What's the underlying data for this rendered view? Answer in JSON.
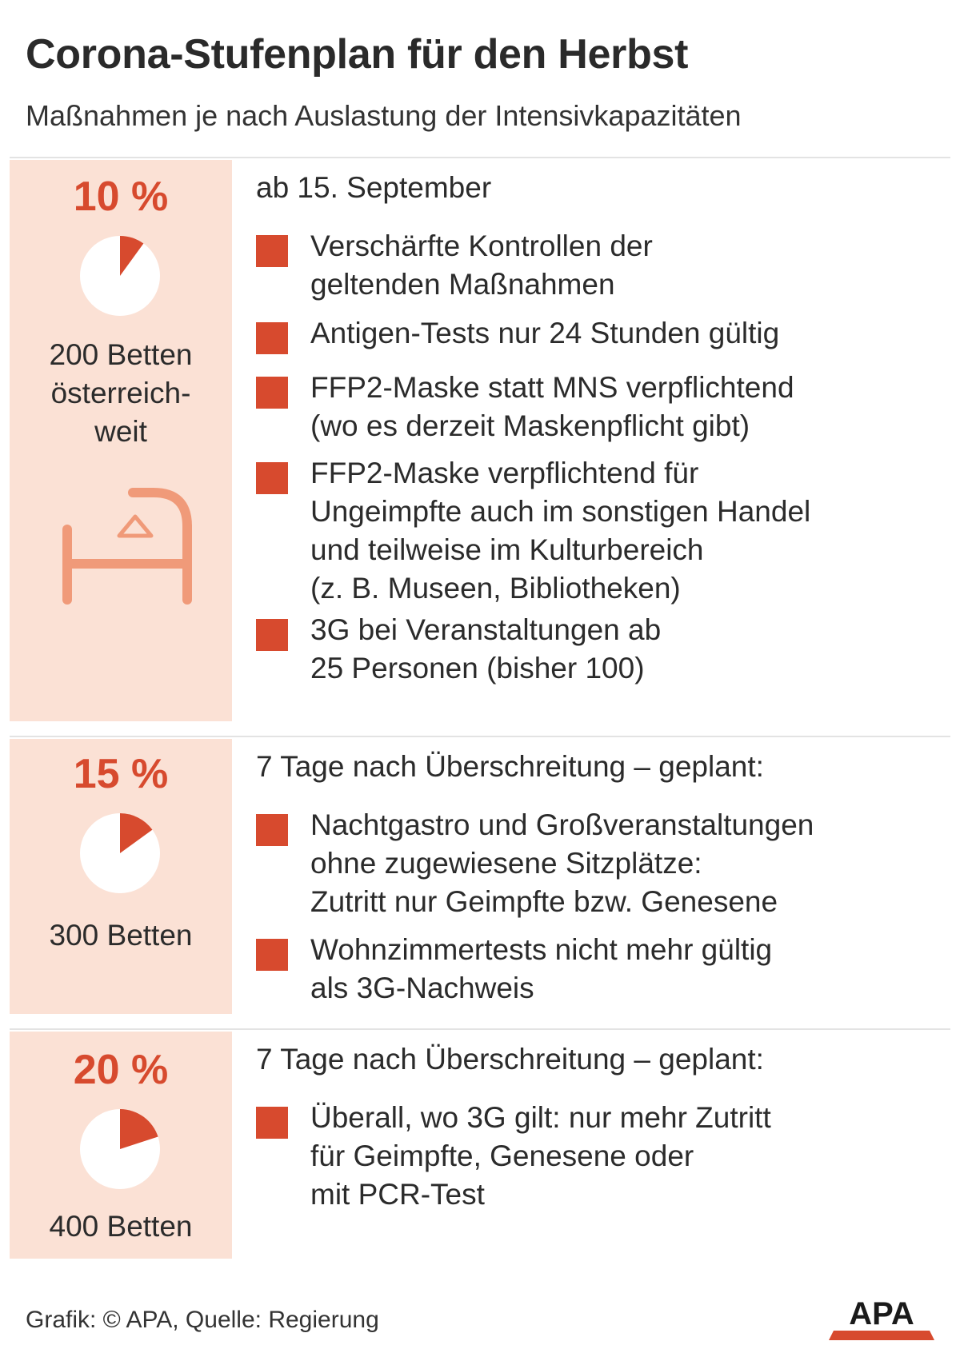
{
  "title": "Corona-Stufenplan für den Herbst",
  "subtitle": "Maßnahmen je nach Auslastung der Intensivkapazitäten",
  "colors": {
    "accent": "#d74a2e",
    "panel": "#fbe1d5",
    "text": "#2b2b2b"
  },
  "stages": [
    {
      "percent_label": "10 %",
      "share": 0.1,
      "beds_lines": [
        "200 Betten",
        "österreich-",
        "weit"
      ],
      "icon": "hospital-bed-icon",
      "heading": "ab 15. September",
      "items": [
        [
          "Verschärfte Kontrollen der",
          "geltenden Maßnahmen"
        ],
        [
          "Antigen-Tests nur 24 Stunden gültig"
        ],
        [
          "FFP2-Maske statt MNS verpflichtend",
          "(wo es derzeit Maskenpflicht gibt)"
        ],
        [
          "FFP2-Maske verpflichtend für",
          "Ungeimpfte auch im sonstigen Handel",
          "und teilweise im Kulturbereich",
          "(z. B. Museen, Bibliotheken)"
        ],
        [
          "3G bei Veranstaltungen ab",
          "25 Personen (bisher 100)"
        ]
      ]
    },
    {
      "percent_label": "15 %",
      "share": 0.15,
      "beds_lines": [
        "300 Betten"
      ],
      "heading": "7 Tage nach Überschreitung – geplant:",
      "items": [
        [
          "Nachtgastro und Großveranstaltungen",
          "ohne zugewiesene Sitzplätze:",
          "Zutritt nur Geimpfte bzw. Genesene"
        ],
        [
          "Wohnzimmertests nicht mehr gültig",
          "als 3G-Nachweis"
        ]
      ]
    },
    {
      "percent_label": "20 %",
      "share": 0.2,
      "beds_lines": [
        "400 Betten"
      ],
      "heading": "7 Tage nach Überschreitung – geplant:",
      "items": [
        [
          "Überall, wo 3G gilt: nur mehr Zutritt",
          "für Geimpfte, Genesene oder",
          "mit PCR-Test"
        ]
      ]
    }
  ],
  "footer": "Grafik: © APA, Quelle: Regierung",
  "logo_text": "APA"
}
